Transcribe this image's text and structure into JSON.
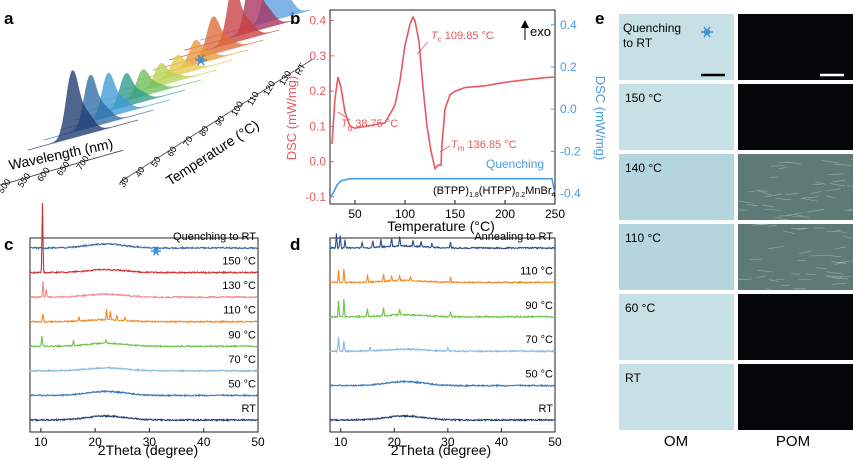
{
  "panel_labels": {
    "a": "a",
    "b": "b",
    "c": "c",
    "d": "d",
    "e": "e"
  },
  "panel_a": {
    "x_label": "Wavelength (nm)",
    "z_label": "Temperature (°C)",
    "wavelength_ticks": [
      "400",
      "450",
      "500",
      "550",
      "600",
      "650",
      "700"
    ],
    "temperature_ticks": [
      "30",
      "40",
      "50",
      "60",
      "70",
      "80",
      "90",
      "100",
      "110",
      "120",
      "130",
      "RT"
    ],
    "icon": "snowflake-icon",
    "colors": [
      "#1e3a6e",
      "#2e6ea6",
      "#3f9ad6",
      "#2f9a8c",
      "#6fbf5a",
      "#b8d44f",
      "#e6c84a",
      "#e89a3c",
      "#e0693a",
      "#c94043",
      "#a8325e",
      "#5a9fe0"
    ]
  },
  "chart_data": [
    {
      "panel": "b",
      "type": "line",
      "xlabel": "Temperature (°C)",
      "ylabel": "DSC (mW/mg)",
      "y2label": "DSC (mW/mg)",
      "xlim": [
        25,
        250
      ],
      "ylim": [
        -0.12,
        0.43
      ],
      "y2lim": [
        -0.45,
        0.47
      ],
      "x_ticks": [
        50,
        100,
        150,
        200,
        250
      ],
      "y_ticks": [
        -0.1,
        0.0,
        0.1,
        0.2,
        0.3,
        0.4
      ],
      "y2_ticks": [
        -0.4,
        -0.2,
        0.0,
        0.2,
        0.4
      ],
      "x_tick_labels": [
        "50",
        "100",
        "150",
        "200",
        "250"
      ],
      "y_tick_labels": [
        "-0.1",
        "0.0",
        "0.1",
        "0.2",
        "0.3",
        "0.4"
      ],
      "y2_tick_labels": [
        "-0.4",
        "-0.2",
        "0.0",
        "0.2",
        "0.4"
      ],
      "series": [
        {
          "axis": "left",
          "color": "#e8595f",
          "x": [
            27,
            30,
            33,
            36,
            40,
            45,
            50,
            60,
            70,
            80,
            90,
            95,
            100,
            105,
            108,
            110,
            114,
            118,
            122,
            126,
            130,
            133,
            136,
            137,
            140,
            145,
            150,
            160,
            180,
            200,
            220,
            240,
            250
          ],
          "y": [
            0.05,
            0.18,
            0.24,
            0.21,
            0.14,
            0.1,
            0.095,
            0.1,
            0.105,
            0.11,
            0.16,
            0.23,
            0.33,
            0.39,
            0.41,
            0.4,
            0.34,
            0.21,
            0.1,
            0.03,
            -0.02,
            -0.01,
            -0.01,
            0.05,
            0.15,
            0.19,
            0.2,
            0.21,
            0.215,
            0.225,
            0.232,
            0.238,
            0.24
          ]
        },
        {
          "name": "Quenching",
          "axis": "right",
          "color": "#4a9be3",
          "x": [
            25,
            28,
            32,
            36,
            45,
            60,
            80,
            100,
            120,
            140,
            160,
            180,
            200,
            220,
            240,
            247,
            250
          ],
          "y": [
            -0.42,
            -0.4,
            -0.36,
            -0.34,
            -0.33,
            -0.33,
            -0.33,
            -0.33,
            -0.33,
            -0.33,
            -0.33,
            -0.33,
            -0.33,
            -0.33,
            -0.33,
            -0.33,
            -0.4
          ]
        }
      ],
      "annotations": {
        "tc": {
          "sym": "T",
          "sub": "c",
          "val": "109.85 °C"
        },
        "tg": {
          "sym": "T",
          "sub": "g",
          "val": "38.75 °C"
        },
        "tm": {
          "sym": "T",
          "sub": "m",
          "val": "136.85 °C"
        },
        "exo": "exo",
        "quenching": "Quenching",
        "formula": {
          "p1": "(BTPP)",
          "s1": "1.8",
          "p2": "(HTPP)",
          "s2": "0.2",
          "p3": "MnBr",
          "s3": "4"
        }
      }
    },
    {
      "panel": "c",
      "type": "line",
      "xlabel": "2Theta  (degree)",
      "xlim": [
        8,
        50
      ],
      "x_ticks": [
        10,
        20,
        30,
        40,
        50
      ],
      "x_tick_labels": [
        "10",
        "20",
        "30",
        "40",
        "50"
      ],
      "series": [
        {
          "name": "RT",
          "color": "#1f3b73",
          "peaks": [],
          "hump": [
            22,
            4
          ]
        },
        {
          "name": "50 °C",
          "color": "#3a78b8",
          "peaks": [],
          "hump": [
            22,
            4
          ]
        },
        {
          "name": "70 °C",
          "color": "#86b9de",
          "peaks": [],
          "hump": [
            22,
            3
          ]
        },
        {
          "name": "90 °C",
          "color": "#6cc24a",
          "peaks": [
            [
              10.2,
              10
            ],
            [
              16,
              5
            ],
            [
              22,
              4
            ]
          ],
          "hump": [
            22,
            3
          ]
        },
        {
          "name": "110 °C",
          "color": "#f08a24",
          "peaks": [
            [
              10.4,
              8
            ],
            [
              17,
              4
            ],
            [
              22.1,
              10
            ],
            [
              22.8,
              9
            ],
            [
              24,
              5
            ],
            [
              25.5,
              4
            ]
          ],
          "hump": [
            22,
            2
          ]
        },
        {
          "name": "130 °C",
          "color": "#f08a87",
          "peaks": [
            [
              10.4,
              16
            ],
            [
              11,
              8
            ]
          ],
          "hump": [
            22,
            3
          ]
        },
        {
          "name": "150 °C",
          "color": "#cc2f2f",
          "peaks": [
            [
              10.3,
              70
            ]
          ],
          "hump": [
            22,
            3
          ]
        },
        {
          "name": "Quenching to RT",
          "color": "#3768a8",
          "peaks": [],
          "hump": [
            22,
            4
          ]
        }
      ]
    },
    {
      "panel": "d",
      "type": "line",
      "xlabel": "2Theta  (degree)",
      "xlim": [
        8,
        50
      ],
      "x_ticks": [
        10,
        20,
        30,
        40,
        50
      ],
      "x_tick_labels": [
        "10",
        "20",
        "30",
        "40",
        "50"
      ],
      "series": [
        {
          "name": "RT",
          "color": "#1f3b73",
          "peaks": [],
          "hump": [
            22,
            4
          ]
        },
        {
          "name": "50 °C",
          "color": "#3a78b8",
          "peaks": [],
          "hump": [
            22,
            4
          ]
        },
        {
          "name": "70 °C",
          "color": "#86b9de",
          "peaks": [
            [
              9.6,
              14
            ],
            [
              10.6,
              10
            ],
            [
              15.5,
              4
            ],
            [
              30,
              3
            ]
          ],
          "hump": [
            22,
            2
          ]
        },
        {
          "name": "90 °C",
          "color": "#6cc24a",
          "peaks": [
            [
              9.6,
              16
            ],
            [
              10.6,
              18
            ],
            [
              15,
              8
            ],
            [
              18,
              8
            ],
            [
              21,
              6
            ],
            [
              30.5,
              5
            ]
          ],
          "hump": [
            22,
            2
          ]
        },
        {
          "name": "110 °C",
          "color": "#f08a24",
          "peaks": [
            [
              9.6,
              12
            ],
            [
              10.6,
              14
            ],
            [
              15,
              7
            ],
            [
              18,
              7
            ],
            [
              19.5,
              5
            ],
            [
              21,
              5
            ],
            [
              23,
              4
            ],
            [
              30.5,
              5
            ]
          ],
          "hump": [
            22,
            2
          ]
        },
        {
          "name": "Annealing to RT",
          "color": "#2c4c8e",
          "peaks": [
            [
              9.2,
              14
            ],
            [
              9.9,
              12
            ],
            [
              10.8,
              8
            ],
            [
              14,
              6
            ],
            [
              16,
              7
            ],
            [
              17.5,
              8
            ],
            [
              19.5,
              9
            ],
            [
              21,
              10
            ],
            [
              23.5,
              6
            ],
            [
              25,
              5
            ],
            [
              27,
              4
            ],
            [
              30.5,
              6
            ]
          ],
          "hump": [
            22,
            2
          ]
        }
      ]
    }
  ],
  "panel_e": {
    "rows": [
      "Quenching to RT",
      "150 °C",
      "140 °C",
      "110 °C",
      "60 °C",
      "RT"
    ],
    "col_labels": {
      "om": "OM",
      "pom": "POM"
    },
    "icon": "snowflake-icon",
    "om_color": "#c6e0e6",
    "pom_color": "#050608"
  }
}
